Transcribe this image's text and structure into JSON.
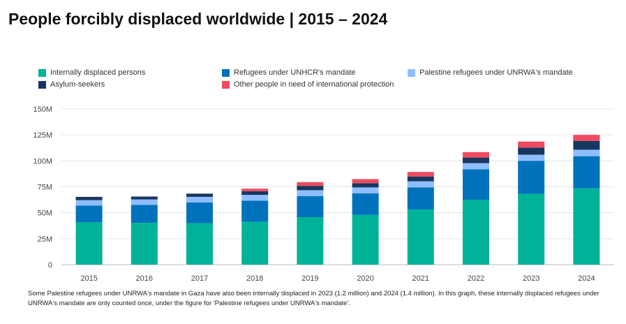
{
  "title": "People forcibly displaced worldwide | 2015 – 2024",
  "note": "Some Palestine refugees under UNRWA's mandate in Gaza have also been internally displaced in 2023 (1.2 million) and 2024 (1.4 million). In this graph, these internally displaced refugees under UNRWA's mandate are only counted once, under the figure for 'Palestine refugees under UNRWA's mandate'.",
  "chart_data": {
    "type": "bar",
    "stacked": true,
    "categories": [
      "2015",
      "2016",
      "2017",
      "2018",
      "2019",
      "2020",
      "2021",
      "2022",
      "2023",
      "2024"
    ],
    "ylim": [
      0,
      150
    ],
    "yticks": [
      0,
      25,
      50,
      75,
      100,
      125,
      150
    ],
    "ytick_labels": [
      "0",
      "25M",
      "50M",
      "75M",
      "100M",
      "125M",
      "150M"
    ],
    "grid": true,
    "legend": "top",
    "series": [
      {
        "name": "Internally displaced persons",
        "color": "#00b398",
        "values": [
          40.8,
          40.3,
          40.0,
          41.3,
          45.7,
          48.0,
          53.2,
          62.5,
          68.3,
          73.5
        ]
      },
      {
        "name": "Refugees under UNHCR's mandate",
        "color": "#0072bc",
        "values": [
          16.1,
          17.2,
          19.9,
          20.4,
          20.4,
          20.7,
          21.3,
          29.4,
          31.6,
          31.0
        ]
      },
      {
        "name": "Palestine refugees under UNRWA's mandate",
        "color": "#8ebeff",
        "values": [
          5.2,
          5.3,
          5.4,
          5.5,
          5.6,
          5.7,
          5.8,
          5.9,
          6.0,
          6.2
        ]
      },
      {
        "name": "Asylum-seekers",
        "color": "#18375f",
        "values": [
          3.2,
          2.8,
          3.1,
          3.5,
          4.2,
          4.1,
          4.6,
          5.4,
          6.9,
          8.4
        ]
      },
      {
        "name": "Other people in need of international protection",
        "color": "#ef4a60",
        "values": [
          0,
          0,
          0,
          2.5,
          3.6,
          3.9,
          4.4,
          5.2,
          5.8,
          5.9
        ]
      }
    ]
  }
}
